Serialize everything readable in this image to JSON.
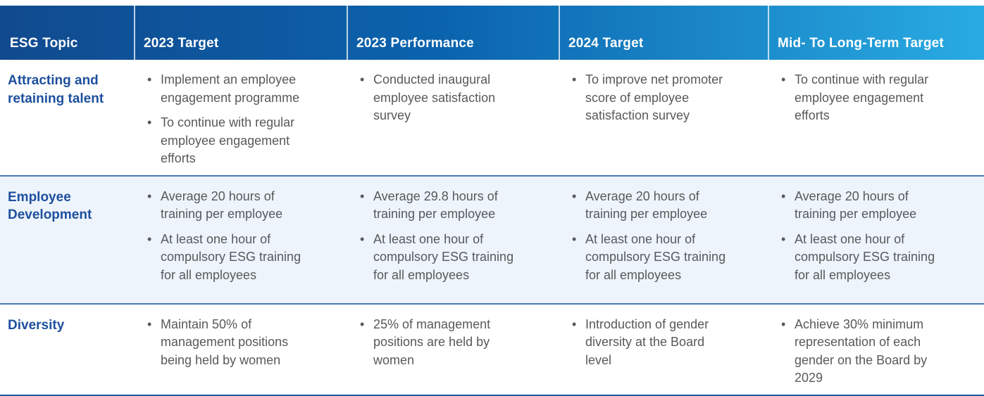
{
  "colors": {
    "header_gradient_start": "#114a8e",
    "header_gradient_mid": "#0b63ae",
    "header_gradient_end": "#29abe2",
    "header_text": "#ffffff",
    "topic_text": "#1d4f9d",
    "body_text": "#58595b",
    "alt_row_bg": "#edf4fb",
    "row_separator": "#4a79b4",
    "bottom_border": "#1e5ca7"
  },
  "table": {
    "columns": [
      "ESG Topic",
      "2023 Target",
      "2023 Performance",
      "2024 Target",
      "Mid- To Long-Term Target"
    ],
    "rows": [
      {
        "topic": "Attracting and retaining talent",
        "target_2023": [
          "Implement an employee engagement programme",
          "To continue with regular employee engagement efforts"
        ],
        "performance_2023": [
          "Conducted inaugural employee satisfaction survey"
        ],
        "target_2024": [
          "To improve net promoter score of employee satisfaction survey"
        ],
        "mid_long_term": [
          "To continue with regular employee engagement efforts"
        ]
      },
      {
        "topic": "Employee Development",
        "target_2023": [
          "Average 20 hours of training per employee",
          "At least one hour of compulsory ESG training for all employees"
        ],
        "performance_2023": [
          "Average 29.8 hours of training per employee",
          "At least one hour of compulsory ESG training for all employees"
        ],
        "target_2024": [
          "Average 20 hours of training per employee",
          "At least one hour of compulsory ESG training for all employees"
        ],
        "mid_long_term": [
          "Average 20 hours of training per employee",
          "At least one hour of compulsory ESG training for all employees"
        ]
      },
      {
        "topic": "Diversity",
        "target_2023": [
          "Maintain 50% of management positions being held by women"
        ],
        "performance_2023": [
          "25% of management positions are held by women"
        ],
        "target_2024": [
          "Introduction of gender diversity at the Board level"
        ],
        "mid_long_term": [
          "Achieve 30% minimum representation of each gender on the Board by 2029"
        ]
      }
    ]
  }
}
